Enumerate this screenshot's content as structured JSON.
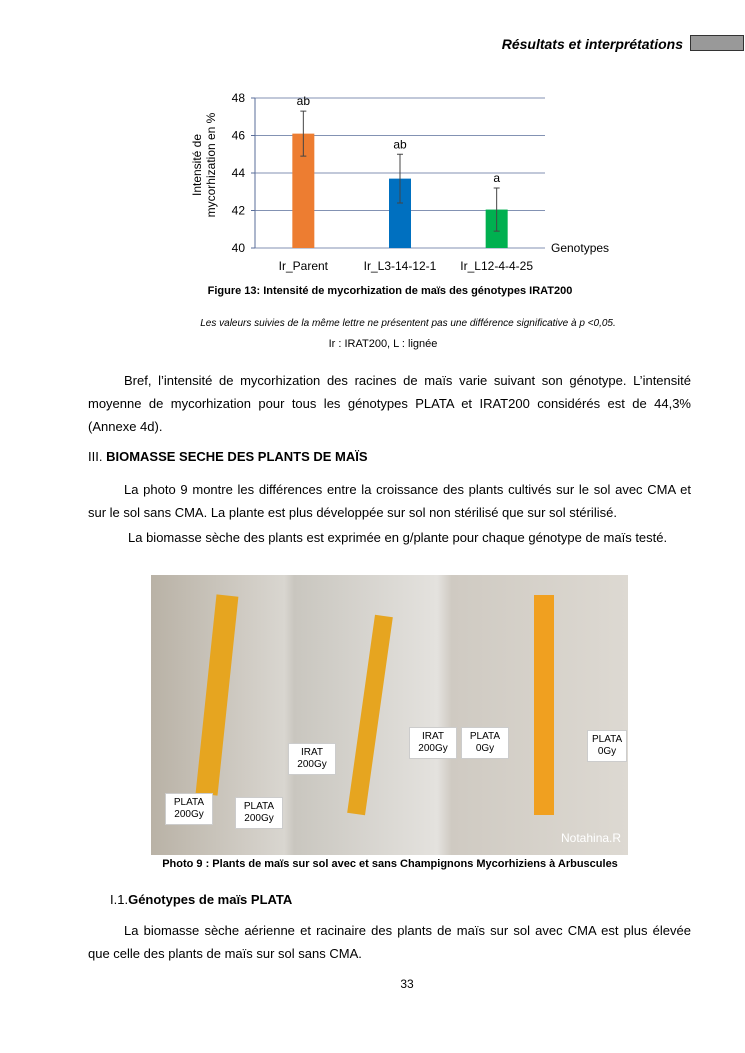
{
  "header": {
    "title": "Résultats et interprétations"
  },
  "chart_data": {
    "type": "bar",
    "ylabel": [
      "Intensité de",
      "mycorhization en %"
    ],
    "xlabel": "Genotypes",
    "categories": [
      "Ir_Parent",
      "Ir_L3-14-12-1",
      "Ir_L12-4-4-25"
    ],
    "values": [
      46.1,
      43.7,
      42.05
    ],
    "errors": [
      1.2,
      1.3,
      1.15
    ],
    "annotations": [
      "ab",
      "ab",
      "a"
    ],
    "colors": [
      "#ed7d31",
      "#0070c0",
      "#00b050"
    ],
    "ylim": [
      40,
      48
    ],
    "yticks": [
      40,
      42,
      44,
      46,
      48
    ],
    "grid": true
  },
  "figure": {
    "caption": "Figure 13: Intensité de mycorhization de maïs des génotypes IRAT200",
    "note": "Les valeurs suivies de la même lettre ne présentent pas une différence significative à p <0,05.",
    "abbreviations": "Ir : IRAT200, L : lignée"
  },
  "paragraphs": [
    "Bref, l’intensité de mycorhization des racines de maïs varie suivant son génotype. L’intensité moyenne de mycorhization pour tous les génotypes PLATA et IRAT200 considérés est de 44,3% (Annexe 4d).",
    "La photo 9 montre les différences entre la croissance des plants cultivés sur le sol avec CMA et sur le sol sans CMA. La plante est plus développée sur sol non stérilisé que sur sol stérilisé.",
    "La biomasse sèche des plants est exprimée en g/plante pour chaque génotype de maïs testé.",
    "La biomasse sèche aérienne et racinaire des plants de maïs sur sol avec CMA est plus élevée que celle des plants de maïs sur sol sans CMA."
  ],
  "section": {
    "number": "III.",
    "title": "BIOMASSE SECHE DES PLANTS DE MAÏS"
  },
  "subsection": {
    "number": "I.1.",
    "title": "Génotypes de maïs PLATA"
  },
  "photo": {
    "caption": "Photo 9 : Plants de maïs sur sol avec et sans Champignons Mycorhiziens à Arbuscules",
    "labels": [
      "PLATA 200Gy",
      "PLATA 200Gy",
      "IRAT 200Gy",
      "IRAT 200Gy",
      "PLATA 0Gy",
      "PLATA 0Gy",
      "Notahina.R"
    ]
  },
  "page_number": "33"
}
